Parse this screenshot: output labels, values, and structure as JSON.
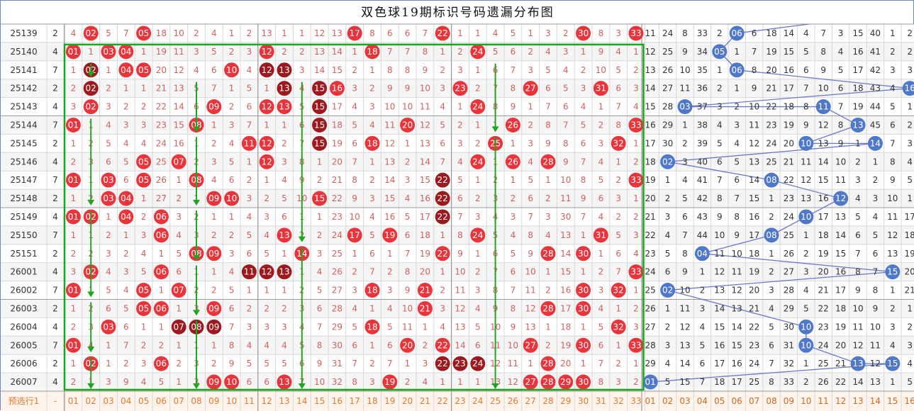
{
  "title": "双色球19期标识号码遗漏分布图",
  "colors": {
    "red_ball": "#e8343a",
    "dark_ball": "#9c1a1f",
    "blue_ball": "#4f79c8",
    "green_frame": "#1fa51f",
    "omission_text_red": "#d06060",
    "omission_text_blue": "#333333",
    "footer_red": "#e07a30",
    "footer_blue": "#d06a20",
    "row_even": "#ffffff",
    "row_odd": "#f5f5f5",
    "grid_line": "#d8d8d8",
    "section_line": "#9a9a9a"
  },
  "icons": {
    "arrow": "arrow-down-icon",
    "blue_connector": "line-connector-icon"
  },
  "footer": {
    "label": "预选行1",
    "dash": "-",
    "red_numbers": [
      "01",
      "02",
      "03",
      "04",
      "05",
      "06",
      "07",
      "08",
      "09",
      "10",
      "11",
      "12",
      "13",
      "14",
      "15",
      "16",
      "17",
      "18",
      "19",
      "20",
      "21",
      "22",
      "23",
      "24",
      "25",
      "26",
      "27",
      "28",
      "29",
      "30",
      "31",
      "32",
      "33"
    ],
    "blue_numbers": [
      "01",
      "02",
      "03",
      "04",
      "05",
      "06",
      "07",
      "08",
      "09",
      "10",
      "11",
      "12",
      "13",
      "14",
      "15",
      "16"
    ]
  },
  "rows": [
    {
      "period": "25139",
      "count": "2",
      "red": [
        "4",
        "02",
        "5",
        "7",
        "05",
        "18",
        "10",
        "2",
        "4",
        "1",
        "2",
        "13",
        "1",
        "1",
        "12",
        "13",
        "17",
        "8",
        "6",
        "6",
        "7",
        "22",
        "1",
        "1",
        "4",
        "5",
        "1",
        "3",
        "2",
        "30",
        "8",
        "3",
        "33"
      ],
      "blue": [
        "11",
        "24",
        "8",
        "33",
        "2",
        "06",
        "6",
        "18",
        "14",
        "4",
        "7",
        "3",
        "15",
        "40",
        "1",
        "2"
      ]
    },
    {
      "period": "25140",
      "count": "4",
      "red": [
        "01",
        "1",
        "03",
        "04",
        "1",
        "19",
        "11",
        "3",
        "5",
        "2",
        "3",
        "12",
        "2",
        "2",
        "13",
        "14",
        "1",
        "18",
        "7",
        "7",
        "8",
        "1",
        "2",
        "24",
        "5",
        "6",
        "2",
        "4",
        "3",
        "1",
        "9",
        "4",
        "1"
      ],
      "blue": [
        "12",
        "25",
        "9",
        "34",
        "05",
        "1",
        "7",
        "19",
        "15",
        "5",
        "8",
        "4",
        "16",
        "41",
        "2",
        "2"
      ]
    },
    {
      "period": "25141",
      "count": "7",
      "red": [
        "1",
        "02",
        "1",
        "04",
        "05",
        "20",
        "12",
        "4",
        "6",
        "10",
        "4",
        "12",
        "13",
        "3",
        "14",
        "15",
        "2",
        "1",
        "8",
        "8",
        "9",
        "2",
        "3",
        "1",
        "6",
        "7",
        "3",
        "5",
        "4",
        "2",
        "10",
        "5",
        "2"
      ],
      "blue": [
        "13",
        "26",
        "10",
        "35",
        "1",
        "06",
        "8",
        "20",
        "16",
        "6",
        "9",
        "5",
        "17",
        "42",
        "3",
        "3"
      ]
    },
    {
      "period": "25142",
      "count": "2",
      "red": [
        "2",
        "02",
        "2",
        "1",
        "1",
        "21",
        "13",
        "5",
        "7",
        "1",
        "5",
        "1",
        "13",
        "4",
        "15",
        "16",
        "3",
        "2",
        "9",
        "9",
        "10",
        "3",
        "23",
        "2",
        "7",
        "8",
        "27",
        "6",
        "5",
        "3",
        "31",
        "6",
        "3"
      ],
      "blue": [
        "14",
        "27",
        "11",
        "36",
        "2",
        "1",
        "9",
        "21",
        "17",
        "7",
        "10",
        "6",
        "18",
        "43",
        "4",
        "16"
      ]
    },
    {
      "period": "25143",
      "count": "4",
      "red": [
        "3",
        "02",
        "3",
        "2",
        "2",
        "22",
        "14",
        "6",
        "09",
        "2",
        "6",
        "12",
        "13",
        "5",
        "15",
        "17",
        "4",
        "3",
        "10",
        "10",
        "11",
        "4",
        "1",
        "24",
        "8",
        "9",
        "1",
        "7",
        "6",
        "4",
        "1",
        "7",
        "4"
      ],
      "blue": [
        "15",
        "28",
        "03",
        "37",
        "3",
        "2",
        "10",
        "22",
        "18",
        "8",
        "11",
        "7",
        "19",
        "44",
        "5",
        "1"
      ]
    },
    {
      "period": "25144",
      "count": "7",
      "red": [
        "01",
        "1",
        "4",
        "3",
        "3",
        "23",
        "15",
        "08",
        "1",
        "3",
        "7",
        "1",
        "1",
        "6",
        "15",
        "18",
        "5",
        "4",
        "11",
        "20",
        "12",
        "5",
        "2",
        "1",
        "1",
        "26",
        "2",
        "8",
        "7",
        "5",
        "2",
        "8",
        "33"
      ],
      "blue": [
        "16",
        "29",
        "1",
        "38",
        "4",
        "3",
        "11",
        "23",
        "19",
        "9",
        "12",
        "8",
        "13",
        "45",
        "6",
        "2"
      ]
    },
    {
      "period": "25145",
      "count": "2",
      "red": [
        "1",
        "2",
        "5",
        "4",
        "4",
        "24",
        "16",
        "1",
        "2",
        "4",
        "11",
        "12",
        "2",
        "7",
        "15",
        "19",
        "6",
        "18",
        "12",
        "1",
        "13",
        "6",
        "3",
        "2",
        "25",
        "1",
        "3",
        "9",
        "8",
        "6",
        "3",
        "32",
        "1"
      ],
      "blue": [
        "17",
        "30",
        "2",
        "39",
        "5",
        "4",
        "12",
        "24",
        "20",
        "10",
        "13",
        "9",
        "1",
        "14",
        "7",
        "3"
      ]
    },
    {
      "period": "25146",
      "count": "4",
      "red": [
        "2",
        "3",
        "6",
        "5",
        "05",
        "25",
        "07",
        "2",
        "3",
        "5",
        "1",
        "12",
        "3",
        "8",
        "1",
        "20",
        "7",
        "1",
        "13",
        "2",
        "14",
        "7",
        "4",
        "24",
        "1",
        "26",
        "4",
        "28",
        "9",
        "7",
        "4",
        "1",
        "2"
      ],
      "blue": [
        "18",
        "02",
        "3",
        "40",
        "6",
        "5",
        "13",
        "25",
        "21",
        "11",
        "14",
        "10",
        "2",
        "1",
        "8",
        "4"
      ]
    },
    {
      "period": "25147",
      "count": "7",
      "red": [
        "01",
        "1",
        "03",
        "6",
        "05",
        "26",
        "1",
        "08",
        "4",
        "6",
        "2",
        "1",
        "4",
        "9",
        "2",
        "21",
        "8",
        "2",
        "14",
        "3",
        "15",
        "22",
        "5",
        "1",
        "2",
        "1",
        "5",
        "1",
        "10",
        "8",
        "5",
        "2",
        "33"
      ],
      "blue": [
        "19",
        "1",
        "4",
        "41",
        "7",
        "6",
        "14",
        "08",
        "22",
        "12",
        "15",
        "11",
        "3",
        "2",
        "9",
        "5"
      ]
    },
    {
      "period": "25148",
      "count": "2",
      "red": [
        "1",
        "2",
        "03",
        "04",
        "1",
        "27",
        "2",
        "1",
        "09",
        "10",
        "3",
        "2",
        "5",
        "10",
        "15",
        "22",
        "9",
        "3",
        "15",
        "4",
        "16",
        "22",
        "6",
        "2",
        "3",
        "2",
        "6",
        "2",
        "11",
        "9",
        "6",
        "3",
        "1"
      ],
      "blue": [
        "20",
        "2",
        "5",
        "42",
        "8",
        "7",
        "15",
        "1",
        "23",
        "13",
        "16",
        "12",
        "4",
        "3",
        "10",
        "1"
      ]
    },
    {
      "period": "25149",
      "count": "4",
      "red": [
        "01",
        "02",
        "1",
        "04",
        "2",
        "06",
        "3",
        "2",
        "1",
        "1",
        "4",
        "3",
        "6",
        "1",
        "1",
        "23",
        "10",
        "4",
        "16",
        "5",
        "17",
        "22",
        "7",
        "3",
        "4",
        "3",
        "7",
        "3",
        "30",
        "7",
        "4",
        "2",
        "2"
      ],
      "blue": [
        "21",
        "3",
        "6",
        "43",
        "9",
        "8",
        "16",
        "2",
        "24",
        "10",
        "17",
        "13",
        "5",
        "4",
        "11",
        "17"
      ]
    },
    {
      "period": "25150",
      "count": "7",
      "red": [
        "1",
        "1",
        "2",
        "1",
        "3",
        "06",
        "4",
        "3",
        "2",
        "2",
        "5",
        "4",
        "13",
        "2",
        "2",
        "24",
        "17",
        "5",
        "19",
        "6",
        "18",
        "1",
        "8",
        "24",
        "5",
        "4",
        "8",
        "4",
        "13",
        "1",
        "31",
        "5",
        "3"
      ],
      "blue": [
        "22",
        "4",
        "7",
        "44",
        "10",
        "9",
        "17",
        "08",
        "25",
        "1",
        "18",
        "14",
        "6",
        "5",
        "12",
        "18"
      ]
    },
    {
      "period": "25151",
      "count": "2",
      "red": [
        "2",
        "2",
        "3",
        "2",
        "4",
        "1",
        "5",
        "08",
        "09",
        "3",
        "6",
        "5",
        "1",
        "14",
        "3",
        "25",
        "1",
        "6",
        "1",
        "7",
        "19",
        "22",
        "9",
        "1",
        "6",
        "5",
        "9",
        "28",
        "14",
        "30",
        "1",
        "6",
        "4"
      ],
      "blue": [
        "23",
        "5",
        "8",
        "04",
        "11",
        "10",
        "18",
        "1",
        "26",
        "2",
        "19",
        "15",
        "7",
        "6",
        "13",
        "19"
      ]
    },
    {
      "period": "26001",
      "count": "4",
      "red": [
        "3",
        "02",
        "4",
        "3",
        "5",
        "06",
        "6",
        "1",
        "1",
        "4",
        "11",
        "12",
        "13",
        "1",
        "4",
        "26",
        "2",
        "7",
        "2",
        "8",
        "20",
        "1",
        "10",
        "2",
        "7",
        "6",
        "10",
        "1",
        "15",
        "1",
        "2",
        "7",
        "33"
      ],
      "blue": [
        "24",
        "6",
        "9",
        "1",
        "12",
        "11",
        "19",
        "2",
        "27",
        "3",
        "20",
        "16",
        "8",
        "7",
        "15",
        "20"
      ]
    },
    {
      "period": "26002",
      "count": "7",
      "red": [
        "01",
        "1",
        "5",
        "4",
        "05",
        "1",
        "07",
        "2",
        "2",
        "5",
        "1",
        "1",
        "1",
        "2",
        "5",
        "27",
        "3",
        "18",
        "3",
        "9",
        "21",
        "2",
        "11",
        "3",
        "8",
        "7",
        "11",
        "2",
        "16",
        "30",
        "3",
        "32",
        "1"
      ],
      "blue": [
        "25",
        "02",
        "10",
        "2",
        "13",
        "12",
        "20",
        "3",
        "28",
        "4",
        "21",
        "17",
        "9",
        "8",
        "1",
        "21"
      ]
    },
    {
      "period": "26003",
      "count": "2",
      "red": [
        "1",
        "2",
        "6",
        "5",
        "05",
        "06",
        "1",
        "3",
        "09",
        "6",
        "2",
        "2",
        "2",
        "3",
        "6",
        "28",
        "4",
        "1",
        "4",
        "10",
        "21",
        "3",
        "12",
        "4",
        "9",
        "8",
        "12",
        "28",
        "17",
        "30",
        "4",
        "1",
        "2"
      ],
      "blue": [
        "26",
        "1",
        "11",
        "3",
        "14",
        "13",
        "21",
        "4",
        "29",
        "5",
        "22",
        "18",
        "10",
        "9",
        "2",
        "1"
      ]
    },
    {
      "period": "26004",
      "count": "4",
      "red": [
        "2",
        "3",
        "03",
        "6",
        "1",
        "1",
        "07",
        "08",
        "09",
        "7",
        "3",
        "3",
        "3",
        "4",
        "7",
        "29",
        "5",
        "18",
        "5",
        "11",
        "1",
        "4",
        "13",
        "5",
        "10",
        "9",
        "13",
        "1",
        "18",
        "1",
        "5",
        "32",
        "3"
      ],
      "blue": [
        "27",
        "2",
        "12",
        "4",
        "15",
        "14",
        "22",
        "5",
        "30",
        "10",
        "23",
        "19",
        "11",
        "10",
        "3",
        "2"
      ]
    },
    {
      "period": "26005",
      "count": "7",
      "red": [
        "01",
        "4",
        "1",
        "7",
        "2",
        "2",
        "1",
        "1",
        "1",
        "8",
        "4",
        "4",
        "4",
        "5",
        "8",
        "30",
        "6",
        "1",
        "6",
        "20",
        "2",
        "22",
        "14",
        "6",
        "11",
        "10",
        "27",
        "2",
        "19",
        "30",
        "6",
        "1",
        "33"
      ],
      "blue": [
        "28",
        "3",
        "13",
        "5",
        "16",
        "15",
        "23",
        "6",
        "31",
        "10",
        "24",
        "20",
        "12",
        "11",
        "4",
        "3"
      ]
    },
    {
      "period": "26006",
      "count": "2",
      "red": [
        "1",
        "02",
        "1",
        "2",
        "3",
        "06",
        "2",
        "3",
        "2",
        "9",
        "5",
        "5",
        "5",
        "6",
        "9",
        "31",
        "7",
        "2",
        "7",
        "1",
        "3",
        "22",
        "23",
        "24",
        "12",
        "11",
        "1",
        "28",
        "20",
        "1",
        "7",
        "2",
        "1"
      ],
      "blue": [
        "29",
        "4",
        "14",
        "6",
        "17",
        "16",
        "24",
        "7",
        "32",
        "1",
        "25",
        "21",
        "13",
        "12",
        "15",
        "4"
      ]
    },
    {
      "period": "26007",
      "count": "4",
      "red": [
        "2",
        "1",
        "3",
        "9",
        "4",
        "5",
        "1",
        "3",
        "09",
        "10",
        "6",
        "6",
        "13",
        "7",
        "10",
        "32",
        "8",
        "3",
        "19",
        "2",
        "4",
        "1",
        "1",
        "1",
        "13",
        "12",
        "27",
        "28",
        "29",
        "30",
        "8",
        "3",
        "2"
      ],
      "blue": [
        "01",
        "5",
        "15",
        "7",
        "18",
        "17",
        "25",
        "8",
        "33",
        "2",
        "26",
        "22",
        "14",
        "13",
        "1",
        "5"
      ]
    }
  ]
}
